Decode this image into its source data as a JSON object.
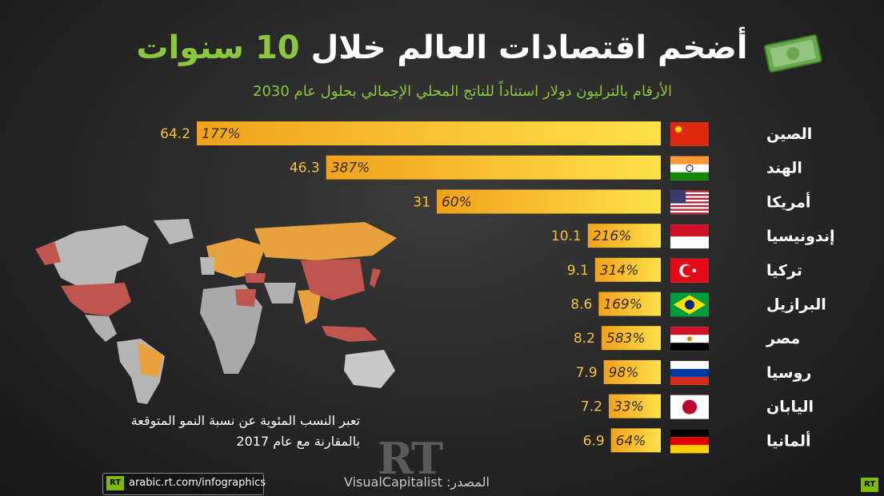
{
  "title": {
    "part1": "أضخم اقتصادات العالم خلال",
    "number": "10",
    "part2": "سنوات"
  },
  "subtitle": "الأرقام بالترليون دولار استناداً للناتج المحلي الإجمالي بحلول عام 2030",
  "note": {
    "line1": "تعبر النسب المئوية عن نسبة النمو المتوقعة",
    "line2": "بالمقارنة مع عام 2017"
  },
  "logo": "RT",
  "source": "المصدر: VisualCapitalist",
  "site": {
    "badge": "RT",
    "url": "arabic.rt.com/infographics"
  },
  "corner_badge": "RT",
  "colors": {
    "accent_green": "#8cc63f",
    "bar_yellow": "#f5c518",
    "highlight_red": "#d9342b"
  },
  "chart_data": {
    "type": "bar",
    "orientation": "horizontal",
    "categories": [
      "الصين",
      "الهند",
      "أمريكا",
      "إندونيسيا",
      "تركيا",
      "البرازيل",
      "مصر",
      "روسيا",
      "اليابان",
      "ألمانيا"
    ],
    "values": [
      64.2,
      46.3,
      31,
      10.1,
      9.1,
      8.6,
      8.2,
      7.9,
      7.2,
      6.9
    ],
    "value_labels": [
      "64.2",
      "46.3",
      "31",
      "10.1",
      "9.1",
      "8.6",
      "8.2",
      "7.9",
      "7.2",
      "6.9"
    ],
    "growth_labels": [
      "177%",
      "387%",
      "60%",
      "216%",
      "314%",
      "169%",
      "583%",
      "98%",
      "33%",
      "64%"
    ],
    "highlighted": [
      "583%"
    ],
    "flags": [
      "china-flag",
      "india-flag",
      "usa-flag",
      "indonesia-flag",
      "turkey-flag",
      "brazil-flag",
      "egypt-flag",
      "russia-flag",
      "japan-flag",
      "germany-flag"
    ],
    "xlim": [
      0,
      64.2
    ]
  }
}
